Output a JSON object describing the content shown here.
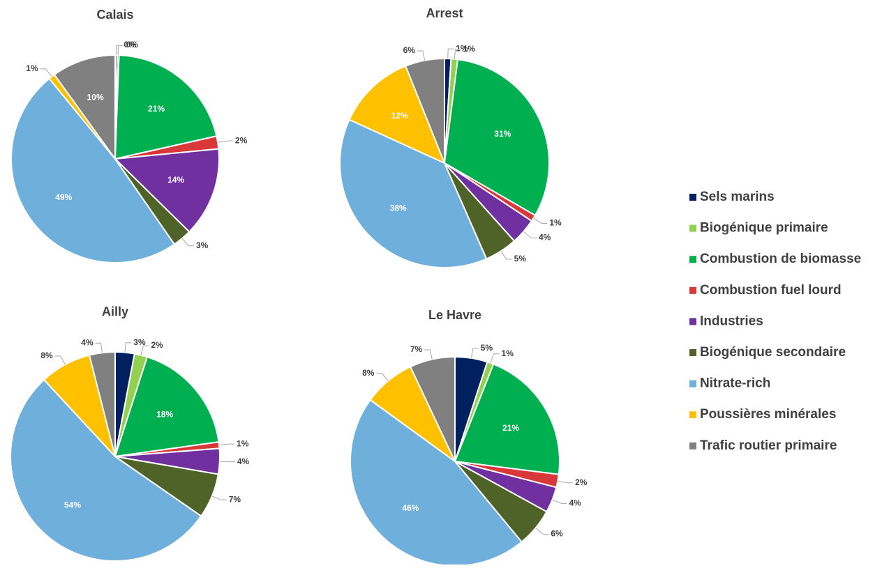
{
  "chart_data": [
    {
      "type": "pie",
      "title": "Calais",
      "values": [
        0.3,
        0.3,
        21,
        2,
        14,
        3,
        49,
        1,
        10
      ],
      "value_labels": [
        "0%",
        "0%",
        "21%",
        "2%",
        "14%",
        "3%",
        "49%",
        "1%",
        "10%"
      ]
    },
    {
      "type": "pie",
      "title": "Arrest",
      "values": [
        1,
        1,
        31,
        1,
        4,
        5,
        38,
        12,
        6
      ],
      "value_labels": [
        "1%",
        "1%",
        "31%",
        "1%",
        "4%",
        "5%",
        "38%",
        "12%",
        "6%"
      ]
    },
    {
      "type": "pie",
      "title": "Ailly",
      "values": [
        3,
        2,
        18,
        1,
        4,
        7,
        54,
        8,
        4
      ],
      "value_labels": [
        "3%",
        "2%",
        "18%",
        "1%",
        "4%",
        "7%",
        "54%",
        "8%",
        "4%"
      ]
    },
    {
      "type": "pie",
      "title": "Le Havre",
      "values": [
        5,
        1,
        21,
        2,
        4,
        6,
        46,
        8,
        7
      ],
      "value_labels": [
        "5%",
        "1%",
        "21%",
        "2%",
        "4%",
        "6%",
        "46%",
        "8%",
        "7%"
      ]
    }
  ],
  "legend": {
    "labels": [
      "Sels marins",
      "Biogénique primaire",
      "Combustion de biomasse",
      "Combustion fuel lourd",
      "Industries",
      "Biogénique secondaire",
      "Nitrate-rich",
      "Poussières minérales",
      "Trafic routier primaire"
    ],
    "colors": [
      "#002060",
      "#92d050",
      "#00b050",
      "#d9383a",
      "#7030a0",
      "#4f6228",
      "#6fafdc",
      "#ffc000",
      "#808080"
    ]
  }
}
